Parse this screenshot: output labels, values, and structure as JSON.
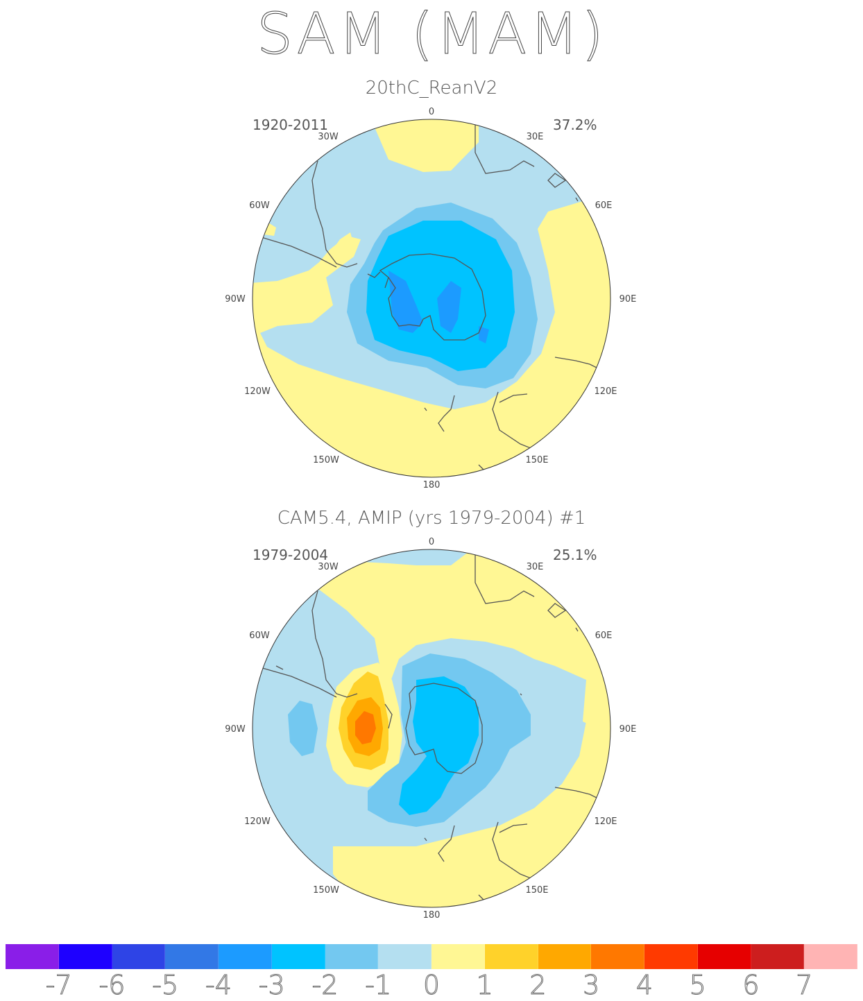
{
  "title": "SAM (MAM)",
  "panels": [
    {
      "title": "20thC_ReanV2",
      "years": "1920-2011",
      "pct": "37.2%",
      "lon_labels": {
        "n": "0",
        "e30": "30E",
        "e60": "60E",
        "e90": "90E",
        "e120": "120E",
        "e150": "150E",
        "s": "180",
        "w150": "150W",
        "w120": "120W",
        "w90": "90W",
        "w60": "60W",
        "w30": "30W"
      }
    },
    {
      "title": "CAM5.4, AMIP (yrs 1979-2004)     #1",
      "years": "1979-2004",
      "pct": "25.1%",
      "lon_labels": {
        "n": "0",
        "e30": "30E",
        "e60": "60E",
        "e90": "90E",
        "e120": "120E",
        "e150": "150E",
        "s": "180",
        "w150": "150W",
        "w120": "120W",
        "w90": "90W",
        "w60": "60W",
        "w30": "30W"
      }
    }
  ],
  "colorbar": {
    "colors": [
      "#8a1ee8",
      "#1e00ff",
      "#2e44e6",
      "#3278e6",
      "#1c9bff",
      "#00c3ff",
      "#73c8f0",
      "#b4dff0",
      "#fff794",
      "#ffd22a",
      "#ffa800",
      "#ff7800",
      "#ff3a00",
      "#e60000",
      "#cd1e1e",
      "#ffb4b4"
    ],
    "labels": [
      "-7",
      "-6",
      "-5",
      "-4",
      "-3",
      "-2",
      "-1",
      "0",
      "1",
      "2",
      "3",
      "4",
      "5",
      "6",
      "7"
    ]
  },
  "fill_colors": {
    "pos1": "#fff794",
    "pos2": "#ffd22a",
    "pos3": "#ffa800",
    "pos4": "#ff7800",
    "neg1": "#b4dff0",
    "neg2": "#73c8f0",
    "neg3": "#00c3ff",
    "neg4": "#1c9bff",
    "coast": "#555555"
  }
}
